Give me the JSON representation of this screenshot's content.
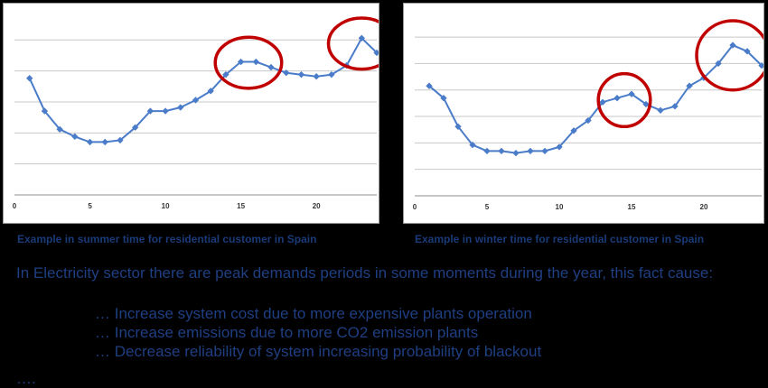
{
  "chart_data": [
    {
      "type": "line",
      "caption": "Example in summer time for residential customer in Spain",
      "x": [
        1,
        2,
        3,
        4,
        5,
        6,
        7,
        8,
        9,
        10,
        11,
        12,
        13,
        14,
        15,
        16,
        17,
        18,
        19,
        20,
        21,
        22,
        23,
        24
      ],
      "series": [
        {
          "values": [
            6.4,
            4.6,
            3.6,
            3.2,
            2.9,
            2.9,
            3.0,
            3.7,
            4.6,
            4.6,
            4.8,
            5.2,
            5.7,
            6.6,
            7.3,
            7.3,
            7.0,
            6.7,
            6.6,
            6.5,
            6.6,
            7.1,
            8.6,
            7.8
          ]
        }
      ],
      "xticks": [
        0,
        5,
        10,
        15,
        20
      ],
      "xlim": [
        0,
        24
      ],
      "ylim": [
        0,
        10
      ],
      "grid": true,
      "highlight_circles": [
        {
          "x": 15.5,
          "y": 7.25,
          "rx": 2.2,
          "ry": 1.4
        },
        {
          "x": 23.0,
          "y": 8.3,
          "rx": 2.2,
          "ry": 1.4
        }
      ],
      "line_color": "#4a7cc9",
      "circle_color": "#c00000"
    },
    {
      "type": "line",
      "caption": "Example in winter time for residential customer in Spain",
      "x": [
        1,
        2,
        3,
        4,
        5,
        6,
        7,
        8,
        9,
        10,
        11,
        12,
        13,
        14,
        15,
        16,
        17,
        18,
        19,
        20,
        21,
        22,
        23,
        24
      ],
      "series": [
        {
          "values": [
            5.4,
            4.8,
            3.4,
            2.5,
            2.2,
            2.2,
            2.1,
            2.2,
            2.2,
            2.4,
            3.2,
            3.7,
            4.6,
            4.8,
            5.0,
            4.5,
            4.2,
            4.4,
            5.4,
            5.8,
            6.5,
            7.4,
            7.1,
            6.4
          ]
        }
      ],
      "xticks": [
        0,
        5,
        10,
        15,
        20
      ],
      "xlim": [
        0,
        24
      ],
      "ylim": [
        0,
        9
      ],
      "grid": true,
      "highlight_circles": [
        {
          "x": 14.5,
          "y": 4.7,
          "rx": 1.8,
          "ry": 1.3
        },
        {
          "x": 22.0,
          "y": 6.9,
          "rx": 2.5,
          "ry": 1.7
        }
      ],
      "line_color": "#4a7cc9",
      "circle_color": "#c00000"
    }
  ],
  "text": {
    "intro": "In Electricity sector there are peak demands periods in some moments during the year, this fact cause:",
    "bullets": [
      "… Increase system cost due to more expensive plants operation",
      "… Increase emissions due to more CO2 emission plants",
      "… Decrease reliability of system increasing probability of blackout"
    ],
    "trailing": "…."
  }
}
